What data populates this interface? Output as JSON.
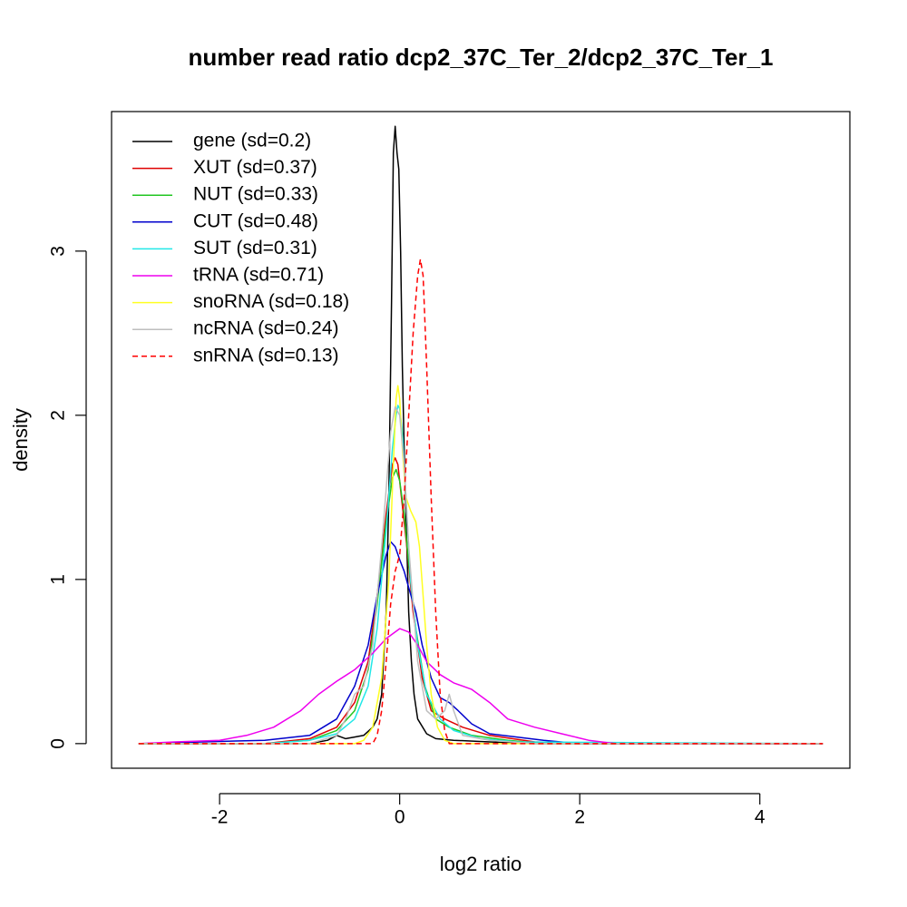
{
  "chart_data": {
    "type": "line",
    "title": "number read ratio dcp2_37C_Ter_2/dcp2_37C_Ter_1",
    "xlabel": "log2 ratio",
    "ylabel": "density",
    "xlim": [
      -3.2,
      5.0
    ],
    "ylim": [
      -0.15,
      3.85
    ],
    "x_ticks": [
      -2,
      0,
      2,
      4
    ],
    "x_tick_labels": [
      "-2",
      "0",
      "2",
      "4"
    ],
    "y_ticks": [
      0,
      1,
      2,
      3
    ],
    "y_tick_labels": [
      "0",
      "1",
      "2",
      "3"
    ],
    "grid": false,
    "legend_position": "top-left",
    "series": [
      {
        "name": "gene (sd=0.2)",
        "color": "#000000",
        "dash": false,
        "points": [
          [
            -2.9,
            0
          ],
          [
            -1.0,
            0.0
          ],
          [
            -0.8,
            0.02
          ],
          [
            -0.7,
            0.05
          ],
          [
            -0.6,
            0.03
          ],
          [
            -0.5,
            0.04
          ],
          [
            -0.4,
            0.05
          ],
          [
            -0.3,
            0.1
          ],
          [
            -0.25,
            0.15
          ],
          [
            -0.2,
            0.3
          ],
          [
            -0.15,
            0.8
          ],
          [
            -0.12,
            1.5
          ],
          [
            -0.09,
            2.7
          ],
          [
            -0.07,
            3.6
          ],
          [
            -0.05,
            3.76
          ],
          [
            -0.03,
            3.6
          ],
          [
            -0.01,
            3.5
          ],
          [
            0.01,
            3.0
          ],
          [
            0.03,
            2.3
          ],
          [
            0.05,
            1.8
          ],
          [
            0.08,
            1.2
          ],
          [
            0.1,
            0.8
          ],
          [
            0.13,
            0.5
          ],
          [
            0.16,
            0.3
          ],
          [
            0.2,
            0.15
          ],
          [
            0.3,
            0.06
          ],
          [
            0.4,
            0.03
          ],
          [
            0.6,
            0.02
          ],
          [
            1.0,
            0.01
          ],
          [
            1.5,
            0.0
          ],
          [
            4.7,
            0
          ]
        ]
      },
      {
        "name": "XUT (sd=0.37)",
        "color": "#df0000",
        "dash": false,
        "points": [
          [
            -2.9,
            0
          ],
          [
            -1.5,
            0.0
          ],
          [
            -1.0,
            0.03
          ],
          [
            -0.7,
            0.1
          ],
          [
            -0.5,
            0.25
          ],
          [
            -0.35,
            0.5
          ],
          [
            -0.25,
            0.9
          ],
          [
            -0.15,
            1.4
          ],
          [
            -0.08,
            1.7
          ],
          [
            -0.05,
            1.74
          ],
          [
            -0.02,
            1.7
          ],
          [
            0.02,
            1.5
          ],
          [
            0.08,
            1.2
          ],
          [
            0.15,
            0.8
          ],
          [
            0.25,
            0.4
          ],
          [
            0.35,
            0.2
          ],
          [
            0.5,
            0.15
          ],
          [
            0.7,
            0.1
          ],
          [
            1.0,
            0.05
          ],
          [
            1.5,
            0.01
          ],
          [
            2.0,
            0.0
          ],
          [
            4.7,
            0
          ]
        ]
      },
      {
        "name": "NUT (sd=0.33)",
        "color": "#22c522",
        "dash": false,
        "points": [
          [
            -2.9,
            0
          ],
          [
            -1.5,
            0.0
          ],
          [
            -1.0,
            0.02
          ],
          [
            -0.7,
            0.08
          ],
          [
            -0.5,
            0.2
          ],
          [
            -0.35,
            0.45
          ],
          [
            -0.25,
            0.85
          ],
          [
            -0.15,
            1.35
          ],
          [
            -0.08,
            1.62
          ],
          [
            -0.04,
            1.67
          ],
          [
            0.0,
            1.6
          ],
          [
            0.05,
            1.4
          ],
          [
            0.1,
            1.1
          ],
          [
            0.18,
            0.7
          ],
          [
            0.28,
            0.35
          ],
          [
            0.4,
            0.15
          ],
          [
            0.55,
            0.1
          ],
          [
            0.8,
            0.05
          ],
          [
            1.2,
            0.02
          ],
          [
            1.6,
            0.0
          ],
          [
            4.7,
            0
          ]
        ]
      },
      {
        "name": "CUT (sd=0.48)",
        "color": "#0000cc",
        "dash": false,
        "points": [
          [
            -2.9,
            0
          ],
          [
            -2.2,
            0.01
          ],
          [
            -1.5,
            0.02
          ],
          [
            -1.0,
            0.05
          ],
          [
            -0.7,
            0.15
          ],
          [
            -0.5,
            0.35
          ],
          [
            -0.35,
            0.6
          ],
          [
            -0.25,
            0.9
          ],
          [
            -0.15,
            1.15
          ],
          [
            -0.1,
            1.23
          ],
          [
            -0.05,
            1.2
          ],
          [
            0.0,
            1.12
          ],
          [
            0.05,
            1.05
          ],
          [
            0.1,
            0.95
          ],
          [
            0.18,
            0.8
          ],
          [
            0.25,
            0.6
          ],
          [
            0.35,
            0.4
          ],
          [
            0.45,
            0.28
          ],
          [
            0.55,
            0.25
          ],
          [
            0.65,
            0.2
          ],
          [
            0.8,
            0.12
          ],
          [
            1.0,
            0.06
          ],
          [
            1.3,
            0.04
          ],
          [
            1.6,
            0.02
          ],
          [
            2.0,
            0.0
          ],
          [
            4.7,
            0
          ]
        ]
      },
      {
        "name": "SUT (sd=0.31)",
        "color": "#22e8e8",
        "dash": false,
        "points": [
          [
            -2.9,
            0
          ],
          [
            -1.5,
            0.0
          ],
          [
            -1.0,
            0.02
          ],
          [
            -0.7,
            0.06
          ],
          [
            -0.5,
            0.15
          ],
          [
            -0.35,
            0.35
          ],
          [
            -0.25,
            0.7
          ],
          [
            -0.15,
            1.3
          ],
          [
            -0.08,
            1.8
          ],
          [
            -0.04,
            2.0
          ],
          [
            -0.02,
            2.06
          ],
          [
            0.0,
            2.04
          ],
          [
            0.03,
            1.9
          ],
          [
            0.07,
            1.5
          ],
          [
            0.12,
            1.0
          ],
          [
            0.2,
            0.6
          ],
          [
            0.3,
            0.3
          ],
          [
            0.45,
            0.15
          ],
          [
            0.6,
            0.08
          ],
          [
            0.9,
            0.03
          ],
          [
            1.3,
            0.01
          ],
          [
            4.7,
            0
          ]
        ]
      },
      {
        "name": "tRNA (sd=0.71)",
        "color": "#ee00ee",
        "dash": false,
        "points": [
          [
            -2.9,
            0
          ],
          [
            -2.5,
            0.01
          ],
          [
            -2.0,
            0.02
          ],
          [
            -1.7,
            0.05
          ],
          [
            -1.4,
            0.1
          ],
          [
            -1.1,
            0.2
          ],
          [
            -0.9,
            0.3
          ],
          [
            -0.7,
            0.38
          ],
          [
            -0.5,
            0.45
          ],
          [
            -0.3,
            0.55
          ],
          [
            -0.15,
            0.64
          ],
          [
            0.0,
            0.7
          ],
          [
            0.1,
            0.68
          ],
          [
            0.2,
            0.6
          ],
          [
            0.3,
            0.5
          ],
          [
            0.45,
            0.42
          ],
          [
            0.6,
            0.37
          ],
          [
            0.8,
            0.33
          ],
          [
            1.0,
            0.25
          ],
          [
            1.2,
            0.15
          ],
          [
            1.5,
            0.1
          ],
          [
            1.8,
            0.06
          ],
          [
            2.1,
            0.02
          ],
          [
            2.4,
            0.0
          ],
          [
            4.7,
            0
          ]
        ]
      },
      {
        "name": "snoRNA (sd=0.18)",
        "color": "#ffff22",
        "dash": false,
        "points": [
          [
            -2.9,
            0
          ],
          [
            -0.5,
            0.0
          ],
          [
            -0.4,
            0.02
          ],
          [
            -0.3,
            0.1
          ],
          [
            -0.2,
            0.4
          ],
          [
            -0.12,
            1.0
          ],
          [
            -0.07,
            1.7
          ],
          [
            -0.04,
            2.1
          ],
          [
            -0.02,
            2.18
          ],
          [
            0.0,
            2.1
          ],
          [
            0.03,
            1.8
          ],
          [
            0.07,
            1.5
          ],
          [
            0.12,
            1.42
          ],
          [
            0.18,
            1.35
          ],
          [
            0.22,
            1.2
          ],
          [
            0.26,
            0.9
          ],
          [
            0.3,
            0.6
          ],
          [
            0.35,
            0.3
          ],
          [
            0.42,
            0.1
          ],
          [
            0.5,
            0.02
          ],
          [
            0.6,
            0.0
          ],
          [
            4.7,
            0
          ]
        ]
      },
      {
        "name": "ncRNA (sd=0.24)",
        "color": "#bebebe",
        "dash": false,
        "points": [
          [
            -2.9,
            0
          ],
          [
            -1.0,
            0.0
          ],
          [
            -0.7,
            0.05
          ],
          [
            -0.6,
            0.15
          ],
          [
            -0.5,
            0.3
          ],
          [
            -0.4,
            0.35
          ],
          [
            -0.3,
            0.6
          ],
          [
            -0.2,
            1.2
          ],
          [
            -0.1,
            1.9
          ],
          [
            -0.05,
            2.05
          ],
          [
            0.0,
            2.0
          ],
          [
            0.05,
            1.7
          ],
          [
            0.1,
            1.2
          ],
          [
            0.2,
            0.5
          ],
          [
            0.3,
            0.2
          ],
          [
            0.4,
            0.15
          ],
          [
            0.5,
            0.2
          ],
          [
            0.55,
            0.3
          ],
          [
            0.6,
            0.2
          ],
          [
            0.7,
            0.05
          ],
          [
            1.0,
            0.02
          ],
          [
            1.5,
            0.0
          ],
          [
            4.7,
            0
          ]
        ]
      },
      {
        "name": "snRNA (sd=0.13)",
        "color": "#ff0000",
        "dash": true,
        "points": [
          [
            -2.9,
            0
          ],
          [
            -0.3,
            0.0
          ],
          [
            -0.25,
            0.05
          ],
          [
            -0.2,
            0.2
          ],
          [
            -0.15,
            0.5
          ],
          [
            -0.1,
            0.85
          ],
          [
            -0.05,
            1.05
          ],
          [
            0.0,
            1.15
          ],
          [
            0.05,
            1.5
          ],
          [
            0.1,
            2.0
          ],
          [
            0.15,
            2.5
          ],
          [
            0.2,
            2.85
          ],
          [
            0.23,
            2.95
          ],
          [
            0.26,
            2.85
          ],
          [
            0.3,
            2.3
          ],
          [
            0.35,
            1.5
          ],
          [
            0.4,
            0.8
          ],
          [
            0.45,
            0.3
          ],
          [
            0.5,
            0.08
          ],
          [
            0.55,
            0.0
          ],
          [
            4.7,
            0
          ]
        ]
      }
    ]
  }
}
